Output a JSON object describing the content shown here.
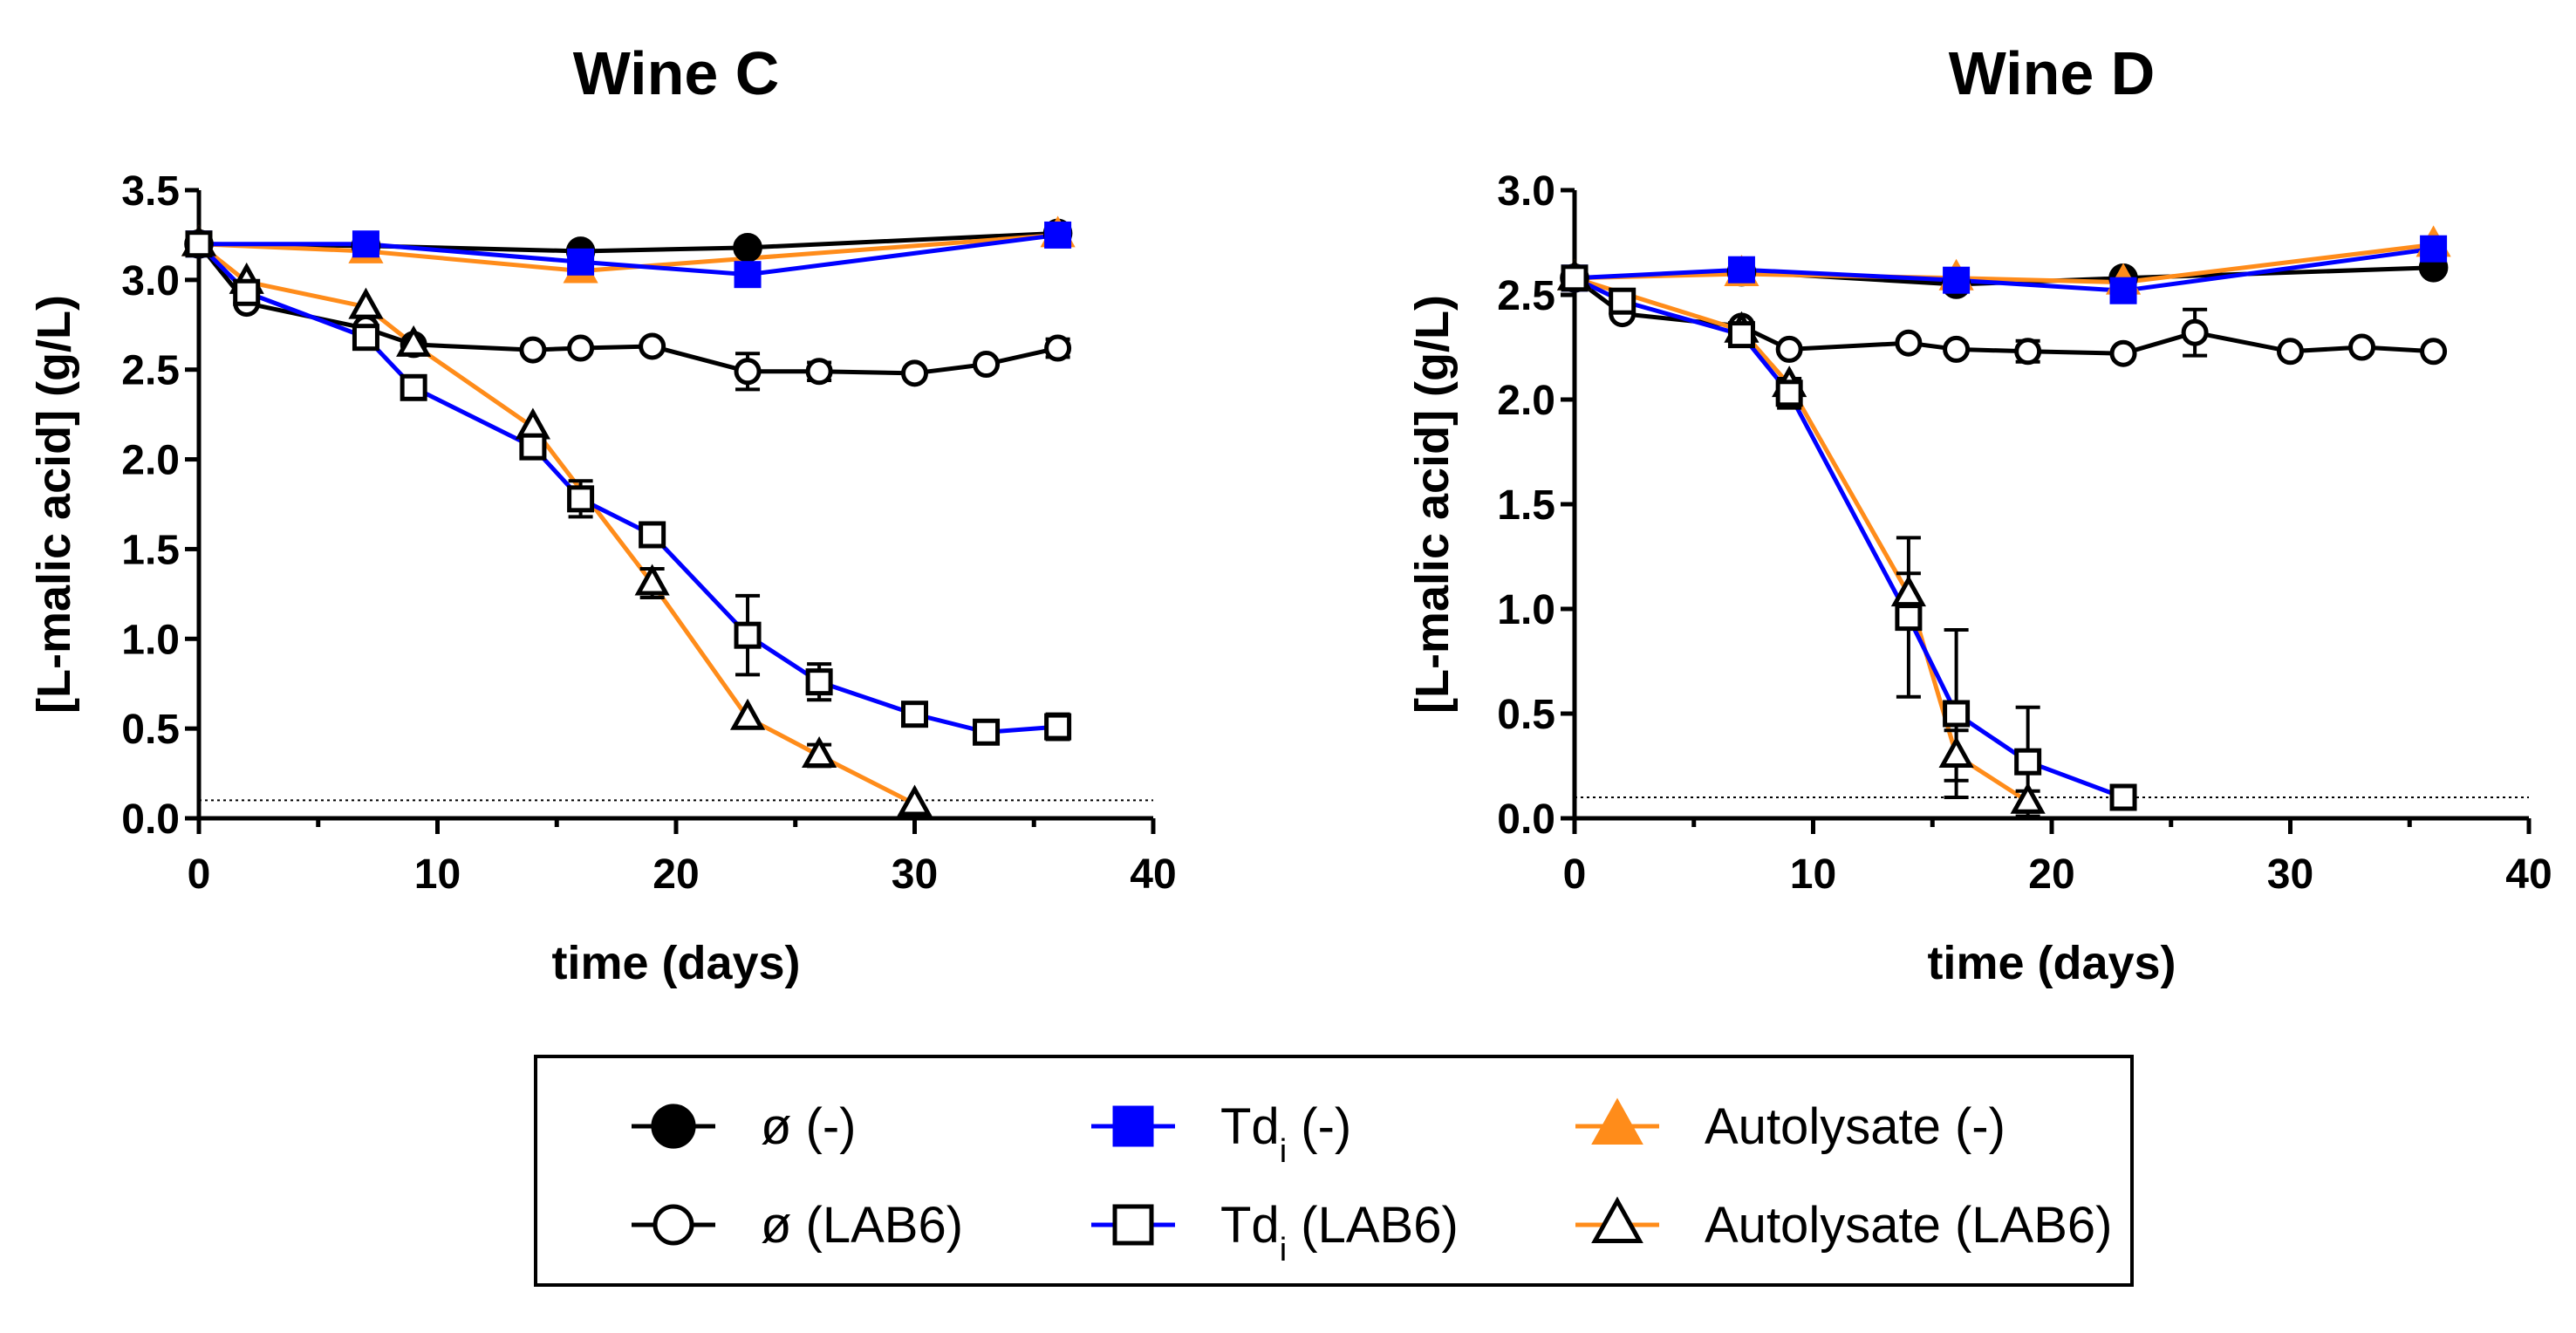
{
  "colors": {
    "black": "#000000",
    "blue": "#0000FF",
    "orange": "#FF8C1A",
    "white": "#FFFFFF"
  },
  "chart_data": [
    {
      "type": "line",
      "title": "Wine C",
      "xlabel": "time (days)",
      "ylabel": "[L-malic acid] (g/L)",
      "xlim": [
        0,
        40
      ],
      "ylim": [
        0,
        3.5
      ],
      "xticks": [
        "0",
        "10",
        "20",
        "30",
        "40"
      ],
      "yticks": [
        "0.0",
        "0.5",
        "1.0",
        "1.5",
        "2.0",
        "2.5",
        "3.0",
        "3.5"
      ],
      "threshold": 0.1,
      "series": [
        {
          "name": "ø (-)",
          "color": "#000000",
          "marker": "circle-filled",
          "x": [
            0,
            7,
            16,
            23,
            36
          ],
          "y": [
            3.2,
            3.19,
            3.16,
            3.18,
            3.26
          ],
          "err": [
            0,
            0,
            0,
            0,
            0
          ]
        },
        {
          "name": "ø (LAB6)",
          "color": "#000000",
          "marker": "circle-open",
          "x": [
            0,
            2,
            7,
            9,
            14,
            16,
            19,
            23,
            26,
            30,
            33,
            36
          ],
          "y": [
            3.2,
            2.87,
            2.73,
            2.64,
            2.61,
            2.62,
            2.63,
            2.49,
            2.49,
            2.48,
            2.53,
            2.62
          ],
          "err": [
            0,
            0,
            0,
            0,
            0,
            0,
            0,
            0.1,
            0.05,
            0,
            0,
            0.05
          ]
        },
        {
          "name": "Tdi (-)",
          "color": "#0000FF",
          "marker": "square-filled",
          "x": [
            0,
            7,
            16,
            23,
            36
          ],
          "y": [
            3.2,
            3.2,
            3.1,
            3.03,
            3.25
          ],
          "err": [
            0,
            0,
            0,
            0,
            0
          ]
        },
        {
          "name": "Tdi (LAB6)",
          "color": "#0000FF",
          "marker": "square-open",
          "x": [
            0,
            2,
            7,
            9,
            14,
            16,
            19,
            23,
            26,
            30,
            33,
            36
          ],
          "y": [
            3.2,
            2.93,
            2.68,
            2.4,
            2.07,
            1.78,
            1.58,
            1.02,
            0.76,
            0.58,
            0.48,
            0.51
          ],
          "err": [
            0,
            0,
            0,
            0,
            0.05,
            0.1,
            0,
            0.22,
            0.1,
            0,
            0,
            0.07
          ]
        },
        {
          "name": "Autolysate (-)",
          "color": "#FF8C1A",
          "marker": "triangle-filled",
          "x": [
            0,
            7,
            16,
            36
          ],
          "y": [
            3.2,
            3.16,
            3.05,
            3.25
          ],
          "err": [
            0,
            0,
            0,
            0
          ]
        },
        {
          "name": "Autolysate (LAB6)",
          "color": "#FF8C1A",
          "marker": "triangle-open",
          "x": [
            0,
            2,
            7,
            9,
            14,
            19,
            23,
            26,
            30
          ],
          "y": [
            3.2,
            2.99,
            2.85,
            2.64,
            2.18,
            1.31,
            0.56,
            0.35,
            0.08
          ],
          "err": [
            0,
            0,
            0,
            0,
            0,
            0.08,
            0,
            0.06,
            0
          ]
        }
      ]
    },
    {
      "type": "line",
      "title": "Wine D",
      "xlabel": "time (days)",
      "ylabel": "[L-malic acid] (g/L)",
      "xlim": [
        0,
        40
      ],
      "ylim": [
        0,
        3.0
      ],
      "xticks": [
        "0",
        "10",
        "20",
        "30",
        "40"
      ],
      "yticks": [
        "0.0",
        "0.5",
        "1.0",
        "1.5",
        "2.0",
        "2.5",
        "3.0"
      ],
      "threshold": 0.1,
      "series": [
        {
          "name": "ø (-)",
          "color": "#000000",
          "marker": "circle-filled",
          "x": [
            0,
            7,
            16,
            23,
            36
          ],
          "y": [
            2.58,
            2.61,
            2.55,
            2.58,
            2.63
          ],
          "err": [
            0,
            0,
            0,
            0,
            0
          ]
        },
        {
          "name": "ø (LAB6)",
          "color": "#000000",
          "marker": "circle-open",
          "x": [
            0,
            2,
            7,
            9,
            14,
            16,
            19,
            23,
            26,
            30,
            33,
            36
          ],
          "y": [
            2.58,
            2.41,
            2.35,
            2.24,
            2.27,
            2.24,
            2.23,
            2.22,
            2.32,
            2.23,
            2.25,
            2.23
          ],
          "err": [
            0,
            0,
            0,
            0,
            0,
            0,
            0.05,
            0,
            0.11,
            0,
            0,
            0
          ]
        },
        {
          "name": "Tdi (-)",
          "color": "#0000FF",
          "marker": "square-filled",
          "x": [
            0,
            7,
            16,
            23,
            36
          ],
          "y": [
            2.58,
            2.62,
            2.57,
            2.52,
            2.72
          ],
          "err": [
            0,
            0,
            0,
            0,
            0
          ]
        },
        {
          "name": "Tdi (LAB6)",
          "color": "#0000FF",
          "marker": "square-open",
          "x": [
            0,
            2,
            7,
            9,
            14,
            16,
            19,
            23
          ],
          "y": [
            2.58,
            2.47,
            2.31,
            2.03,
            0.96,
            0.5,
            0.27,
            0.1
          ],
          "err": [
            0,
            0,
            0,
            0.07,
            0.38,
            0.4,
            0.26,
            0
          ]
        },
        {
          "name": "Autolysate (-)",
          "color": "#FF8C1A",
          "marker": "triangle-filled",
          "x": [
            0,
            7,
            16,
            23,
            36
          ],
          "y": [
            2.58,
            2.6,
            2.58,
            2.56,
            2.74
          ],
          "err": [
            0,
            0,
            0,
            0,
            0
          ]
        },
        {
          "name": "Autolysate (LAB6)",
          "color": "#FF8C1A",
          "marker": "triangle-open",
          "x": [
            0,
            7,
            9,
            14,
            16,
            19
          ],
          "y": [
            2.58,
            2.33,
            2.07,
            1.07,
            0.3,
            0.08
          ],
          "err": [
            0,
            0,
            0,
            0.1,
            0.12,
            0.05
          ]
        }
      ]
    }
  ],
  "legend": [
    {
      "base": "ø",
      "sub": "",
      "suffix": " (-)",
      "color": "#000000",
      "marker": "circle-filled"
    },
    {
      "base": "ø",
      "sub": "",
      "suffix": " (LAB6)",
      "color": "#000000",
      "marker": "circle-open"
    },
    {
      "base": "Td",
      "sub": "i",
      "suffix": " (-)",
      "color": "#0000FF",
      "marker": "square-filled"
    },
    {
      "base": "Td",
      "sub": "i",
      "suffix": " (LAB6)",
      "color": "#0000FF",
      "marker": "square-open"
    },
    {
      "base": "Autolysate",
      "sub": "",
      "suffix": " (-)",
      "color": "#FF8C1A",
      "marker": "triangle-filled"
    },
    {
      "base": "Autolysate",
      "sub": "",
      "suffix": " (LAB6)",
      "color": "#FF8C1A",
      "marker": "triangle-open"
    }
  ]
}
